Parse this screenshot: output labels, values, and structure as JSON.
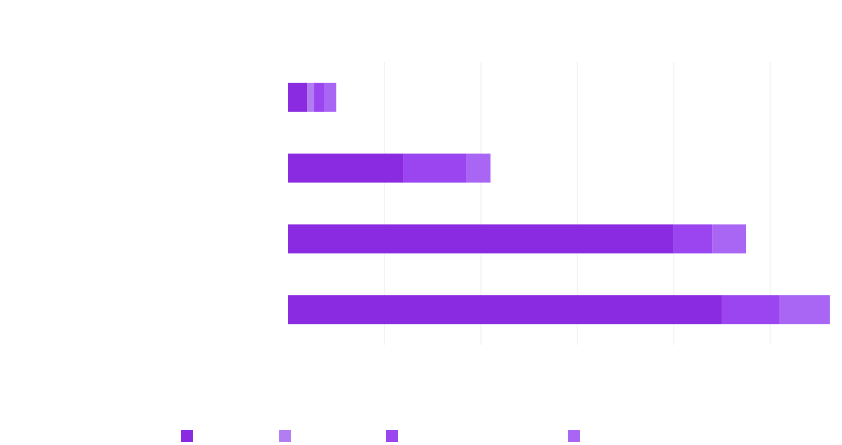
{
  "chart_data": {
    "type": "bar",
    "orientation": "horizontal",
    "stacked": true,
    "title": "",
    "xlabel": "",
    "ylabel": "",
    "categories": [
      "",
      "",
      "",
      ""
    ],
    "xlim": [
      0,
      560
    ],
    "grid": true,
    "legend_position": "bottom",
    "series": [
      {
        "color": "#8a2be2",
        "values": [
          20,
          120,
          400,
          450
        ]
      },
      {
        "color": "#b27cf2",
        "values": [
          7,
          0,
          0,
          0
        ]
      },
      {
        "color": "#9b45f0",
        "values": [
          11,
          65,
          40,
          60
        ]
      },
      {
        "color": "#a966f5",
        "values": [
          12,
          25,
          35,
          52
        ]
      }
    ]
  }
}
